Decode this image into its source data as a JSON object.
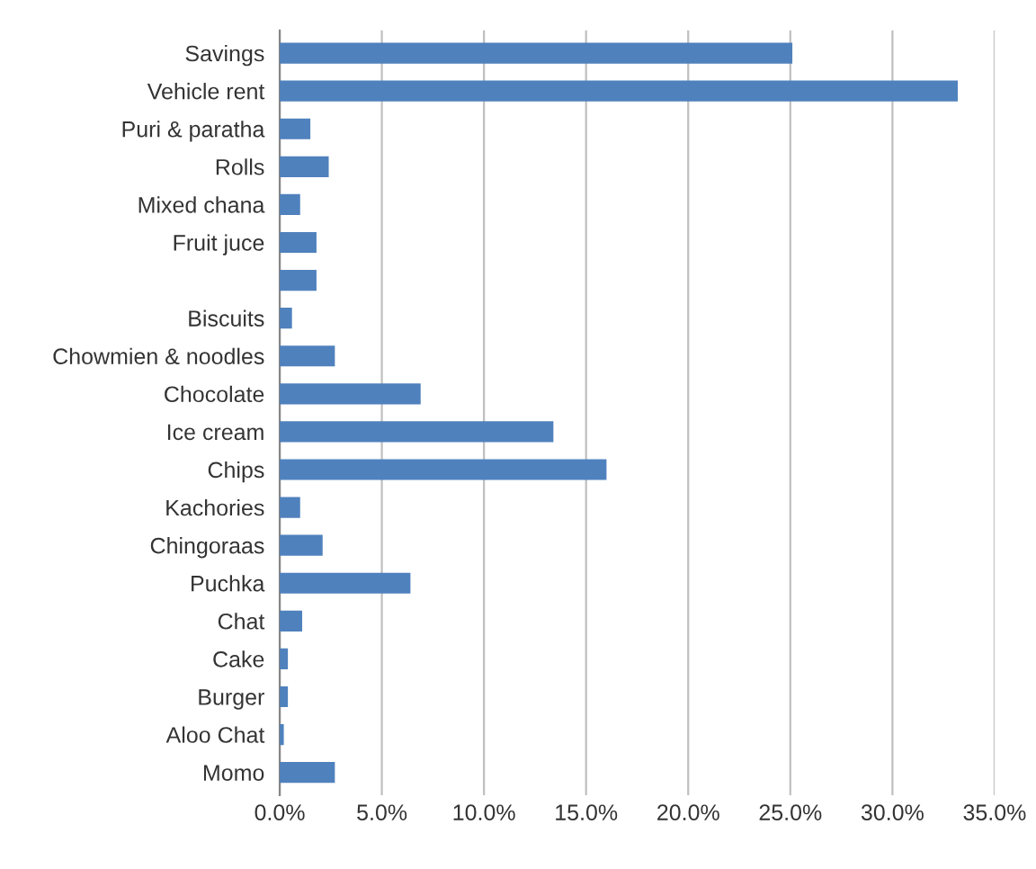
{
  "chart_data": {
    "type": "bar",
    "orientation": "horizontal",
    "categories": [
      "Savings",
      "Vehicle rent",
      "Puri & paratha",
      "Rolls",
      "Mixed chana",
      "Fruit juce",
      null,
      "Biscuits",
      "Chowmien & noodles",
      "Chocolate",
      "Ice cream",
      "Chips",
      "Kachories",
      "Chingoraas",
      "Puchka",
      "Chat",
      "Cake",
      "Burger",
      "Aloo Chat",
      "Momo"
    ],
    "values": [
      25.1,
      33.2,
      1.5,
      2.4,
      1.0,
      1.8,
      1.8,
      0.6,
      2.7,
      6.9,
      13.4,
      16.0,
      1.0,
      2.1,
      6.4,
      1.1,
      0.4,
      0.4,
      0.2,
      2.7
    ],
    "color": "#4f81bd",
    "xlim": [
      0,
      35
    ],
    "xticks": [
      {
        "value": 0,
        "label": "0.0%"
      },
      {
        "value": 5,
        "label": "5.0%"
      },
      {
        "value": 10,
        "label": "10.0%"
      },
      {
        "value": 15,
        "label": "15.0%"
      },
      {
        "value": 20,
        "label": "20.0%"
      },
      {
        "value": 25,
        "label": "25.0%"
      },
      {
        "value": 30,
        "label": "30.0%"
      },
      {
        "value": 35,
        "label": "35.0%"
      }
    ],
    "grid": "x",
    "legend": false
  }
}
